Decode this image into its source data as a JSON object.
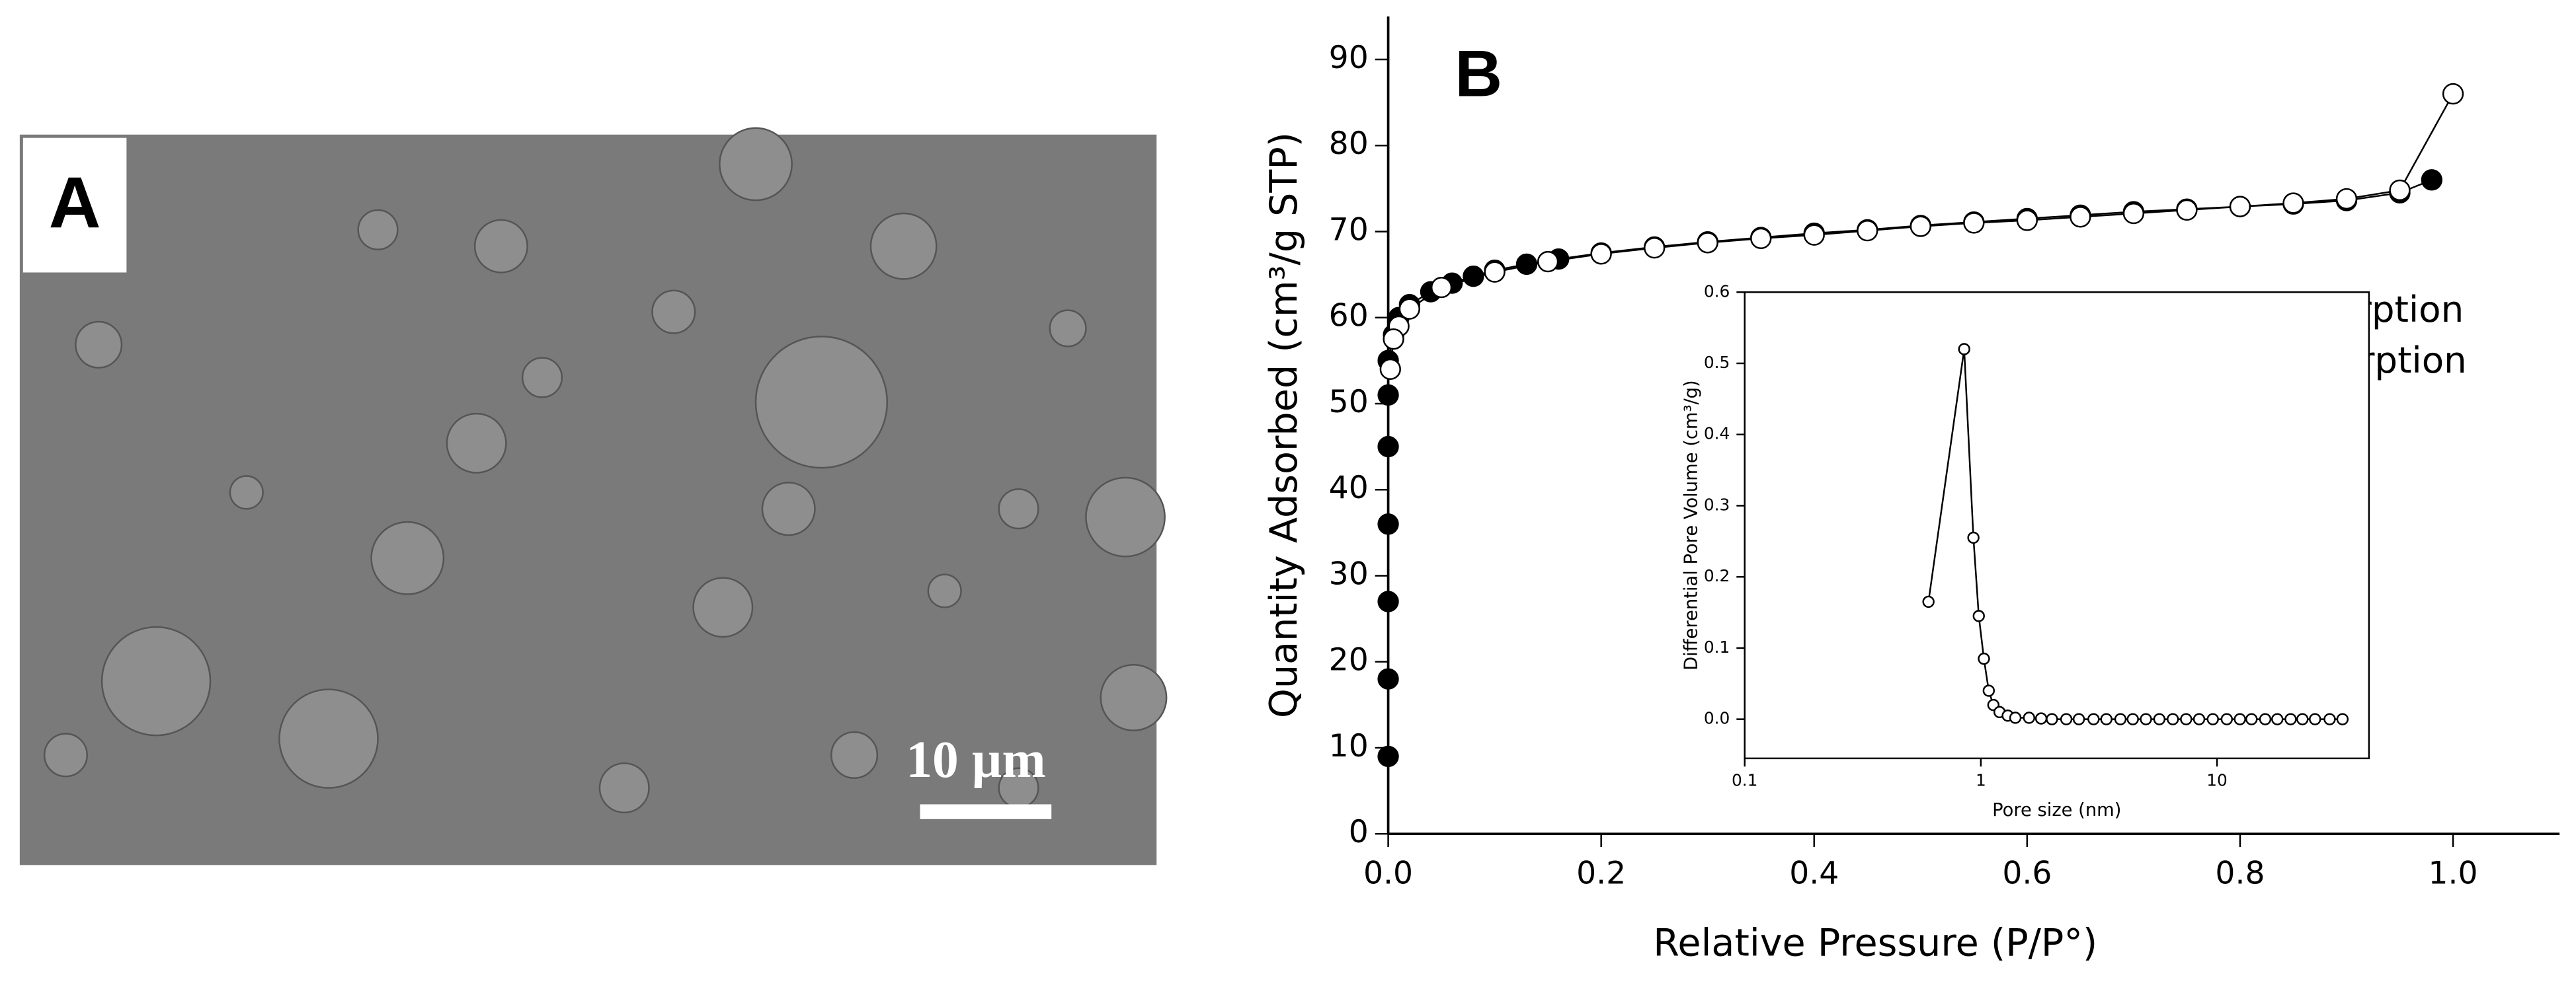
{
  "panel_a": {
    "label": "A",
    "scale_bar": "10 µm"
  },
  "chart_data": [
    {
      "type": "line",
      "panel_label": "B",
      "xlabel": "Relative Pressure (P/P°)",
      "ylabel": "Quantity Adsorbed (cm³/g STP)",
      "xlim": [
        0,
        1.1
      ],
      "ylim": [
        0,
        95
      ],
      "xticks": [
        {
          "value": 0,
          "label": "0.0"
        },
        {
          "value": 0.2,
          "label": "0.2"
        },
        {
          "value": 0.4,
          "label": "0.4"
        },
        {
          "value": 0.6,
          "label": "0.6"
        },
        {
          "value": 0.8,
          "label": "0.8"
        },
        {
          "value": 1.0,
          "label": "1.0"
        }
      ],
      "yticks": [
        0,
        10,
        20,
        30,
        40,
        50,
        60,
        70,
        80,
        90
      ],
      "legend": "upper right",
      "series": [
        {
          "name": "Adsorption",
          "color": "#000000",
          "x": [
            0,
            0,
            0,
            0,
            0,
            0,
            0,
            0.005,
            0.01,
            0.02,
            0.04,
            0.06,
            0.08,
            0.1,
            0.13,
            0.16,
            0.2,
            0.25,
            0.3,
            0.35,
            0.4,
            0.45,
            0.5,
            0.55,
            0.6,
            0.65,
            0.7,
            0.75,
            0.8,
            0.85,
            0.9,
            0.95,
            0.98
          ],
          "values": [
            9,
            18,
            27,
            36,
            45,
            51,
            55,
            58,
            60,
            61.5,
            63,
            64,
            64.8,
            65.5,
            66.2,
            66.8,
            67.5,
            68.2,
            68.8,
            69.3,
            69.8,
            70.2,
            70.7,
            71.1,
            71.5,
            71.9,
            72.3,
            72.6,
            72.9,
            73.2,
            73.6,
            74.5,
            76
          ]
        },
        {
          "name": "Desorption",
          "color": "#ffffff",
          "x": [
            1.0,
            0.95,
            0.9,
            0.85,
            0.8,
            0.75,
            0.7,
            0.65,
            0.6,
            0.55,
            0.5,
            0.45,
            0.4,
            0.35,
            0.3,
            0.25,
            0.2,
            0.15,
            0.1,
            0.05,
            0.02,
            0.01,
            0.005,
            0.002
          ],
          "values": [
            86,
            74.8,
            73.8,
            73.3,
            72.9,
            72.5,
            72.1,
            71.7,
            71.3,
            71,
            70.6,
            70.1,
            69.6,
            69.2,
            68.7,
            68.1,
            67.4,
            66.5,
            65.3,
            63.5,
            61,
            59,
            57.5,
            54
          ]
        }
      ]
    },
    {
      "type": "line",
      "xlabel": "Pore size (nm)",
      "ylabel": "Differential Pore Volume (cm³/g)",
      "xlog": true,
      "xlim": [
        0.1,
        44
      ],
      "ylim": [
        -0.055,
        0.6
      ],
      "xticks": [
        0.1,
        1,
        10
      ],
      "yticks": [
        {
          "value": 0,
          "label": "0.0"
        },
        {
          "value": 0.1,
          "label": "0.1"
        },
        {
          "value": 0.2,
          "label": "0.2"
        },
        {
          "value": 0.3,
          "label": "0.3"
        },
        {
          "value": 0.4,
          "label": "0.4"
        },
        {
          "value": 0.5,
          "label": "0.5"
        },
        {
          "value": 0.6,
          "label": "0.6"
        }
      ],
      "series": [
        {
          "color": "#ffffff",
          "x": [
            0.6,
            0.85,
            0.93,
            0.98,
            1.03,
            1.08,
            1.13,
            1.2,
            1.3,
            1.4,
            1.6,
            1.8,
            2.0,
            2.3,
            2.6,
            3,
            3.4,
            3.9,
            4.4,
            5,
            5.7,
            6.5,
            7.4,
            8.4,
            9.6,
            11,
            12.5,
            14,
            16,
            18,
            20.5,
            23,
            26,
            30,
            34
          ],
          "values": [
            0.165,
            0.52,
            0.255,
            0.145,
            0.085,
            0.04,
            0.02,
            0.01,
            0.005,
            0.002,
            0.002,
            0.001,
            0,
            0,
            0,
            0,
            0,
            0,
            0,
            0,
            0,
            0,
            0,
            0,
            0,
            0,
            0,
            0,
            0,
            0,
            0,
            0,
            0,
            0,
            0
          ]
        }
      ]
    }
  ]
}
